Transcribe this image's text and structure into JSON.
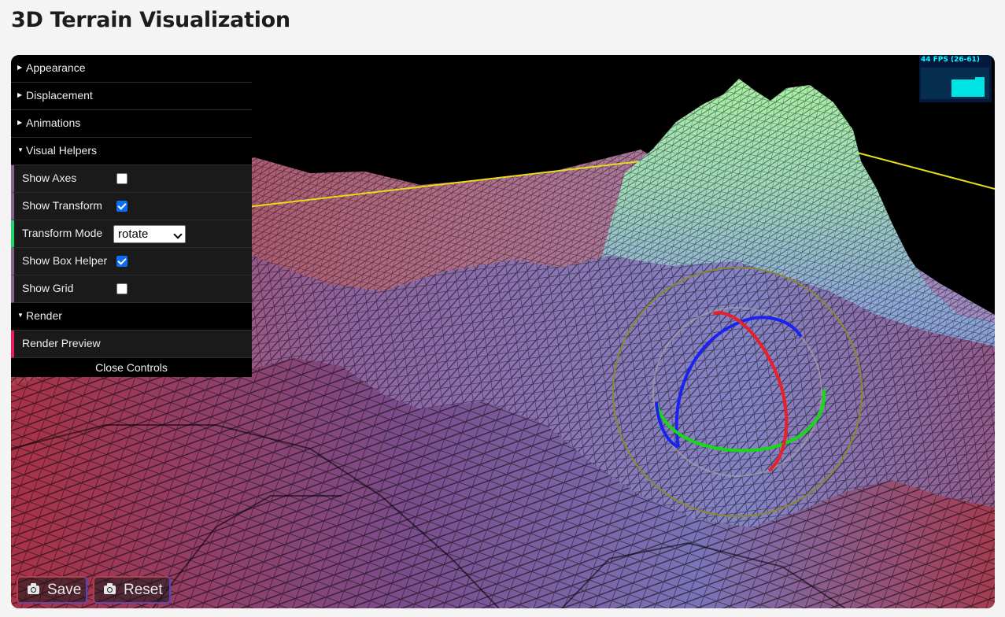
{
  "page": {
    "title": "3D Terrain Visualization"
  },
  "controls": {
    "folders": {
      "appearance": "Appearance",
      "displacement": "Displacement",
      "animations": "Animations",
      "visual_helpers": "Visual Helpers",
      "render": "Render"
    },
    "visual_helpers": {
      "show_axes": {
        "label": "Show Axes",
        "checked": false
      },
      "show_transform": {
        "label": "Show Transform",
        "checked": true
      },
      "transform_mode": {
        "label": "Transform Mode",
        "value": "rotate"
      },
      "show_box_helper": {
        "label": "Show Box Helper",
        "checked": true
      },
      "show_grid": {
        "label": "Show Grid",
        "checked": false
      }
    },
    "render": {
      "render_preview": "Render Preview"
    },
    "close_label": "Close Controls"
  },
  "stats": {
    "fps_text": "44 FPS (26-61)"
  },
  "buttons": {
    "save": "Save",
    "reset": "Reset"
  },
  "icons": {
    "folder_collapsed": "triangle-right-icon",
    "folder_expanded": "triangle-down-icon",
    "button_icon": "camera-icon"
  },
  "colors": {
    "terrain_low": "#b43a4e",
    "terrain_mid": "#8c8cd0",
    "terrain_peak": "#a6f0a0",
    "gizmo_x": "#e8202a",
    "gizmo_y": "#18d818",
    "gizmo_z": "#1a22f0",
    "box_helper": "#e8e020",
    "fps_text": "#00ffff"
  }
}
